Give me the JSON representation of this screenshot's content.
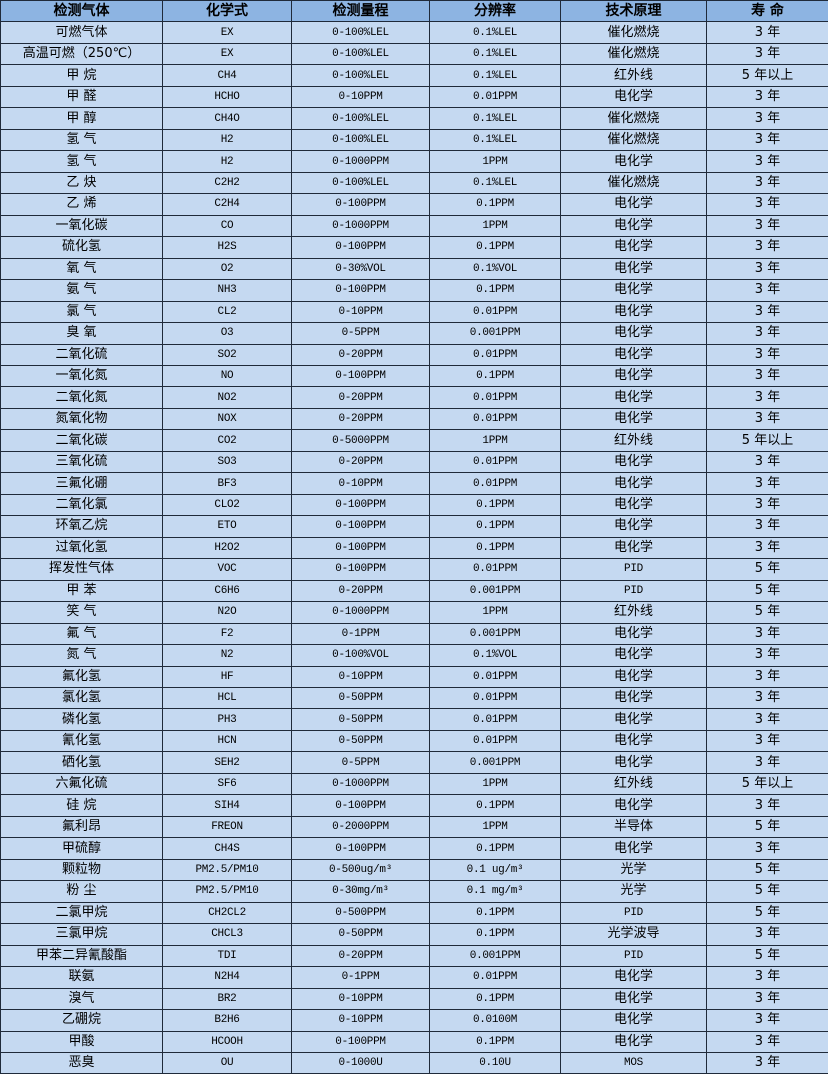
{
  "colors": {
    "header_bg": "#8db4e2",
    "row_bg": "#c5d9f1",
    "border": "#1f2a3a"
  },
  "table": {
    "headers": [
      "检测气体",
      "化学式",
      "检测量程",
      "分辨率",
      "技术原理",
      "寿 命"
    ],
    "rows": [
      [
        "可燃气体",
        "EX",
        "0-100%LEL",
        "0.1%LEL",
        "催化燃烧",
        "3 年"
      ],
      [
        "高温可燃（250℃）",
        "EX",
        "0-100%LEL",
        "0.1%LEL",
        "催化燃烧",
        "3 年"
      ],
      [
        "甲 烷",
        "CH4",
        "0-100%LEL",
        "0.1%LEL",
        "红外线",
        "5 年以上"
      ],
      [
        "甲 醛",
        "HCHO",
        "0-10PPM",
        "0.01PPM",
        "电化学",
        "3 年"
      ],
      [
        "甲 醇",
        "CH4O",
        "0-100%LEL",
        "0.1%LEL",
        "催化燃烧",
        "3 年"
      ],
      [
        "氢 气",
        "H2",
        "0-100%LEL",
        "0.1%LEL",
        "催化燃烧",
        "3 年"
      ],
      [
        "氢 气",
        "H2",
        "0-1000PPM",
        "1PPM",
        "电化学",
        "3 年"
      ],
      [
        "乙 炔",
        "C2H2",
        "0-100%LEL",
        "0.1%LEL",
        "催化燃烧",
        "3 年"
      ],
      [
        "乙 烯",
        "C2H4",
        "0-100PPM",
        "0.1PPM",
        "电化学",
        "3 年"
      ],
      [
        "一氧化碳",
        "CO",
        "0-1000PPM",
        "1PPM",
        "电化学",
        "3 年"
      ],
      [
        "硫化氢",
        "H2S",
        "0-100PPM",
        "0.1PPM",
        "电化学",
        "3 年"
      ],
      [
        "氧 气",
        "O2",
        "0-30%VOL",
        "0.1%VOL",
        "电化学",
        "3 年"
      ],
      [
        "氨 气",
        "NH3",
        "0-100PPM",
        "0.1PPM",
        "电化学",
        "3 年"
      ],
      [
        "氯 气",
        "CL2",
        "0-10PPM",
        "0.01PPM",
        "电化学",
        "3 年"
      ],
      [
        "臭 氧",
        "O3",
        "0-5PPM",
        "0.001PPM",
        "电化学",
        "3 年"
      ],
      [
        "二氧化硫",
        "SO2",
        "0-20PPM",
        "0.01PPM",
        "电化学",
        "3 年"
      ],
      [
        "一氧化氮",
        "NO",
        "0-100PPM",
        "0.1PPM",
        "电化学",
        "3 年"
      ],
      [
        "二氧化氮",
        "NO2",
        "0-20PPM",
        "0.01PPM",
        "电化学",
        "3 年"
      ],
      [
        "氮氧化物",
        "NOX",
        "0-20PPM",
        "0.01PPM",
        "电化学",
        "3 年"
      ],
      [
        "二氧化碳",
        "CO2",
        "0-5000PPM",
        "1PPM",
        "红外线",
        "5 年以上"
      ],
      [
        "三氧化硫",
        "SO3",
        "0-20PPM",
        "0.01PPM",
        "电化学",
        "3 年"
      ],
      [
        "三氟化硼",
        "BF3",
        "0-10PPM",
        "0.01PPM",
        "电化学",
        "3 年"
      ],
      [
        "二氧化氯",
        "CLO2",
        "0-100PPM",
        "0.1PPM",
        "电化学",
        "3 年"
      ],
      [
        "环氧乙烷",
        "ETO",
        "0-100PPM",
        "0.1PPM",
        "电化学",
        "3 年"
      ],
      [
        "过氧化氢",
        "H2O2",
        "0-100PPM",
        "0.1PPM",
        "电化学",
        "3 年"
      ],
      [
        "挥发性气体",
        "VOC",
        "0-100PPM",
        "0.01PPM",
        "PID",
        "5 年"
      ],
      [
        "甲 苯",
        "C6H6",
        "0-20PPM",
        "0.001PPM",
        "PID",
        "5 年"
      ],
      [
        "笑 气",
        "N2O",
        "0-1000PPM",
        "1PPM",
        "红外线",
        "5 年"
      ],
      [
        "氟 气",
        "F2",
        "0-1PPM",
        "0.001PPM",
        "电化学",
        "3 年"
      ],
      [
        "氮 气",
        "N2",
        "0-100%VOL",
        "0.1%VOL",
        "电化学",
        "3 年"
      ],
      [
        "氟化氢",
        "HF",
        "0-10PPM",
        "0.01PPM",
        "电化学",
        "3 年"
      ],
      [
        "氯化氢",
        "HCL",
        "0-50PPM",
        "0.01PPM",
        "电化学",
        "3 年"
      ],
      [
        "磷化氢",
        "PH3",
        "0-50PPM",
        "0.01PPM",
        "电化学",
        "3 年"
      ],
      [
        "氰化氢",
        "HCN",
        "0-50PPM",
        "0.01PPM",
        "电化学",
        "3 年"
      ],
      [
        "硒化氢",
        "SEH2",
        "0-5PPM",
        "0.001PPM",
        "电化学",
        "3 年"
      ],
      [
        "六氟化硫",
        "SF6",
        "0-1000PPM",
        "1PPM",
        "红外线",
        "5 年以上"
      ],
      [
        "硅 烷",
        "SIH4",
        "0-100PPM",
        "0.1PPM",
        "电化学",
        "3 年"
      ],
      [
        "氟利昂",
        "FREON",
        "0-2000PPM",
        "1PPM",
        "半导体",
        "5 年"
      ],
      [
        "甲硫醇",
        "CH4S",
        "0-100PPM",
        "0.1PPM",
        "电化学",
        "3 年"
      ],
      [
        "颗粒物",
        "PM2.5/PM10",
        "0-500ug/m³",
        "0.1 ug/m³",
        "光学",
        "5 年"
      ],
      [
        "粉 尘",
        "PM2.5/PM10",
        "0-30mg/m³",
        "0.1 mg/m³",
        "光学",
        "5 年"
      ],
      [
        "二氯甲烷",
        "CH2CL2",
        "0-500PPM",
        "0.1PPM",
        "PID",
        "5 年"
      ],
      [
        "三氯甲烷",
        "CHCL3",
        "0-50PPM",
        "0.1PPM",
        "光学波导",
        "3 年"
      ],
      [
        "甲苯二异氰酸酯",
        "TDI",
        "0-20PPM",
        "0.001PPM",
        "PID",
        "5 年"
      ],
      [
        "联氨",
        "N2H4",
        "0-1PPM",
        "0.01PPM",
        "电化学",
        "3 年"
      ],
      [
        "溴气",
        "BR2",
        "0-10PPM",
        "0.1PPM",
        "电化学",
        "3 年"
      ],
      [
        "乙硼烷",
        "B2H6",
        "0-10PPM",
        "0.0100M",
        "电化学",
        "3 年"
      ],
      [
        "甲酸",
        "HCOOH",
        "0-100PPM",
        "0.1PPM",
        "电化学",
        "3 年"
      ],
      [
        "恶臭",
        "OU",
        "0-1000U",
        "0.10U",
        "MOS",
        "3 年"
      ]
    ]
  }
}
